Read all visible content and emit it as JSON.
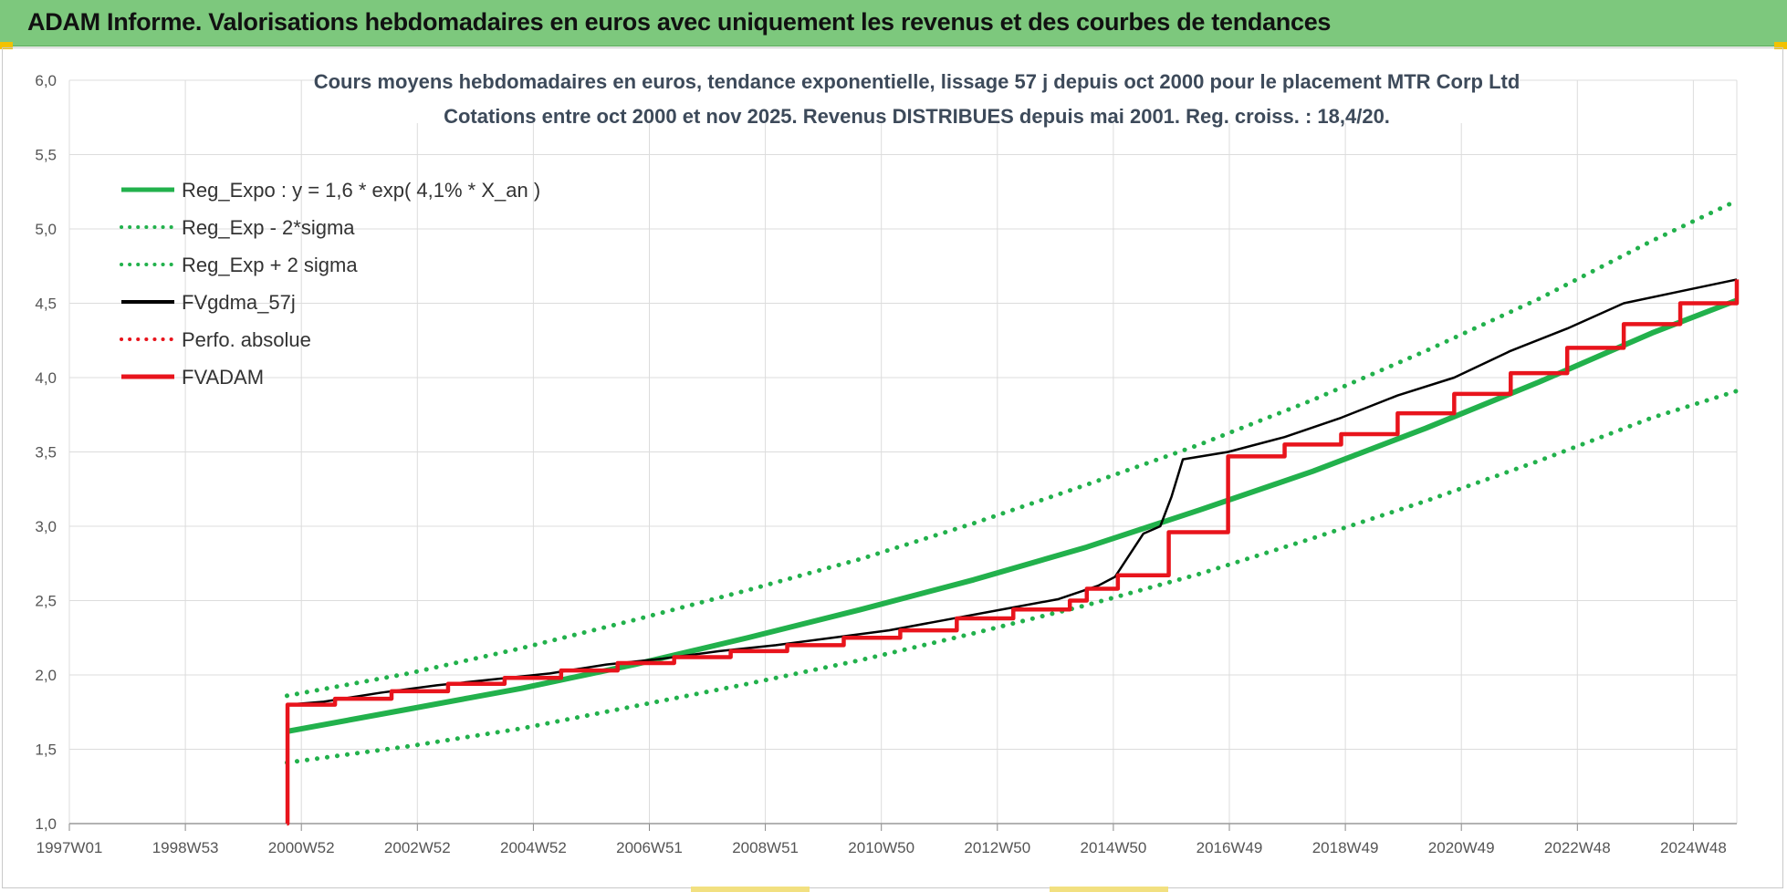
{
  "header": {
    "title": "ADAM Informe. Valorisations hebdomadaires en euros avec uniquement les revenus et des courbes de tendances",
    "background": "#7dc87d"
  },
  "chart_data": {
    "type": "line",
    "title_lines": [
      "Cours moyens hebdomadaires en euros, tendance exponentielle, lissage 57 j depuis oct 2000 pour le placement MTR Corp Ltd",
      "Cotations entre oct 2000 et nov 2025. Revenus DISTRIBUES depuis mai 2001. Reg. croiss. : 18,4/20."
    ],
    "xlabel": "",
    "ylabel": "",
    "x_tick_labels": [
      "1997W01",
      "1998W53",
      "2000W52",
      "2002W52",
      "2004W52",
      "2006W51",
      "2008W51",
      "2010W50",
      "2012W50",
      "2014W50",
      "2016W49",
      "2018W49",
      "2020W49",
      "2022W48",
      "2024W48"
    ],
    "y_tick_labels": [
      "1,0",
      "1,5",
      "2,0",
      "2,5",
      "3,0",
      "3,5",
      "4,0",
      "4,5",
      "5,0",
      "5,5",
      "6,0"
    ],
    "xlim": [
      1997.0,
      2026.5
    ],
    "ylim": [
      1.0,
      6.0
    ],
    "grid": true,
    "legend_position": "top-left",
    "series": [
      {
        "name": "Reg_Expo : y = 1,6 * exp( 4,1% *  X_an )",
        "color": "#22b14c",
        "style": "solid",
        "x": [
          2000.85,
          2003,
          2005,
          2007,
          2009,
          2011,
          2013,
          2015,
          2017,
          2019,
          2021,
          2023,
          2025,
          2026.5
        ],
        "y": [
          1.62,
          1.77,
          1.91,
          2.07,
          2.25,
          2.44,
          2.64,
          2.86,
          3.11,
          3.37,
          3.66,
          3.97,
          4.3,
          4.52
        ]
      },
      {
        "name": "Reg_Exp - 2*sigma",
        "color": "#22b14c",
        "style": "dotted",
        "x": [
          2000.85,
          2003,
          2005,
          2007,
          2009,
          2011,
          2013,
          2015,
          2017,
          2019,
          2021,
          2023,
          2025,
          2026.5
        ],
        "y": [
          1.41,
          1.52,
          1.64,
          1.79,
          1.94,
          2.1,
          2.28,
          2.47,
          2.68,
          2.92,
          3.17,
          3.44,
          3.73,
          3.91
        ]
      },
      {
        "name": "Reg_Exp + 2 sigma",
        "color": "#22b14c",
        "style": "dotted",
        "x": [
          2000.85,
          2003,
          2005,
          2007,
          2009,
          2011,
          2013,
          2015,
          2017,
          2019,
          2021,
          2023,
          2025,
          2026.5
        ],
        "y": [
          1.86,
          2.01,
          2.18,
          2.37,
          2.57,
          2.78,
          3.02,
          3.28,
          3.55,
          3.85,
          4.18,
          4.53,
          4.92,
          5.19
        ]
      },
      {
        "name": "FVgdma_57j",
        "color": "#000000",
        "style": "solid",
        "x": [
          2000.85,
          2000.86,
          2001.5,
          2002.5,
          2003.5,
          2004.5,
          2005.5,
          2006.5,
          2007.5,
          2008.5,
          2009.5,
          2010.5,
          2011.5,
          2012.5,
          2013.5,
          2014.5,
          2015.2,
          2015.5,
          2016.0,
          2016.3,
          2016.5,
          2016.7,
          2017.5,
          2018.5,
          2019.5,
          2020.5,
          2021.5,
          2022.5,
          2023.5,
          2024.5,
          2025.5,
          2026.5
        ],
        "y": [
          1.0,
          1.8,
          1.82,
          1.88,
          1.93,
          1.97,
          2.01,
          2.07,
          2.11,
          2.16,
          2.2,
          2.25,
          2.3,
          2.37,
          2.44,
          2.51,
          2.6,
          2.66,
          2.95,
          3.0,
          3.2,
          3.45,
          3.5,
          3.6,
          3.73,
          3.88,
          4.0,
          4.18,
          4.33,
          4.5,
          4.58,
          4.66
        ]
      },
      {
        "name": "Perfo. absolue",
        "color": "#e8141c",
        "style": "dotted",
        "x": [],
        "y": []
      },
      {
        "name": "FVADAM",
        "color": "#e8141c",
        "style": "step",
        "x": [
          2000.85,
          2000.86,
          2001.7,
          2002.7,
          2003.7,
          2004.7,
          2005.7,
          2006.7,
          2007.7,
          2008.7,
          2009.7,
          2010.7,
          2011.7,
          2012.7,
          2013.7,
          2014.7,
          2015.0,
          2015.55,
          2016.45,
          2017.5,
          2018.5,
          2019.5,
          2020.5,
          2021.5,
          2022.5,
          2023.5,
          2024.5,
          2025.5,
          2026.5
        ],
        "y": [
          1.0,
          1.8,
          1.84,
          1.89,
          1.94,
          1.98,
          2.03,
          2.08,
          2.12,
          2.16,
          2.2,
          2.25,
          2.3,
          2.38,
          2.44,
          2.5,
          2.58,
          2.67,
          2.96,
          3.47,
          3.55,
          3.62,
          3.76,
          3.89,
          4.03,
          4.2,
          4.36,
          4.5,
          4.66
        ]
      }
    ]
  }
}
